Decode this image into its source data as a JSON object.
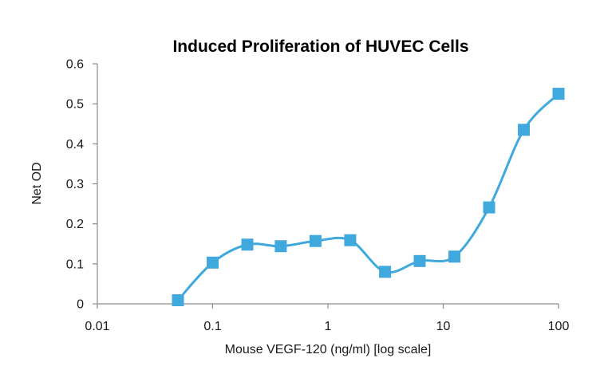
{
  "chart_data": {
    "type": "line",
    "title": "Induced Proliferation of HUVEC Cells",
    "xlabel": "Mouse VEGF-120 (ng/ml) [log scale]",
    "ylabel": "Net OD",
    "x_scale": "log",
    "xlim": [
      0.01,
      100
    ],
    "ylim": [
      0,
      0.6
    ],
    "x_ticks": [
      "0.01",
      "0.1",
      "1",
      "10",
      "100"
    ],
    "y_ticks": [
      "0",
      "0.1",
      "0.2",
      "0.3",
      "0.4",
      "0.5",
      "0.6"
    ],
    "grid": false,
    "legend": "none",
    "series": [
      {
        "color": "#3fa8dc",
        "marker": "square",
        "smooth": true,
        "x": [
          0.05,
          0.1,
          0.2,
          0.39,
          0.78,
          1.56,
          3.13,
          6.25,
          12.5,
          25,
          50,
          100
        ],
        "y": [
          0.009,
          0.103,
          0.148,
          0.144,
          0.157,
          0.159,
          0.08,
          0.107,
          0.118,
          0.241,
          0.435,
          0.525
        ]
      }
    ]
  }
}
